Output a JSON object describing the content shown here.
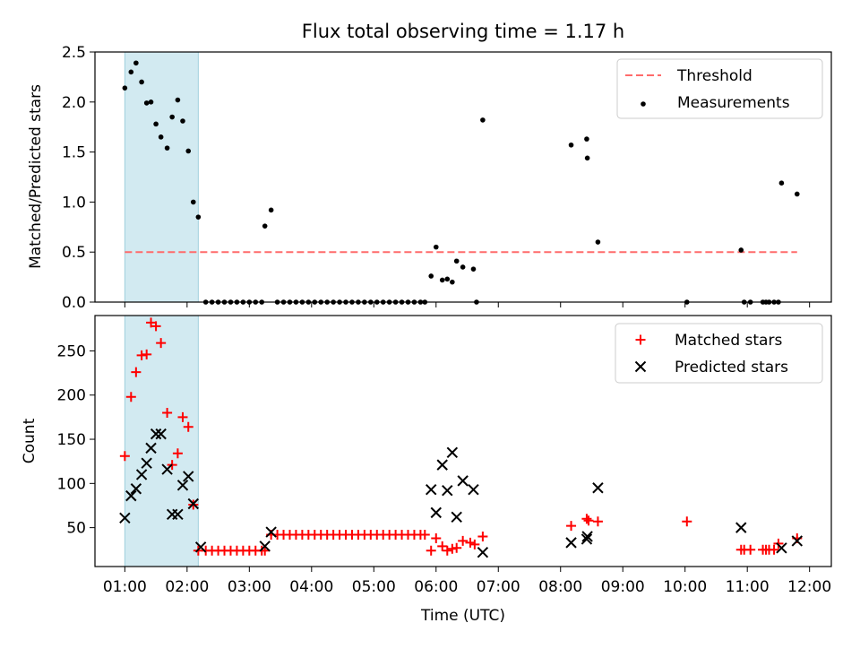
{
  "chart_data": {
    "type": "scatter",
    "title": "Flux total observing time = 1.17 h",
    "xlabel": "Time (UTC)",
    "xlim": [
      0.52,
      12.35
    ],
    "xticks": [
      "01:00",
      "02:00",
      "03:00",
      "04:00",
      "05:00",
      "06:00",
      "07:00",
      "08:00",
      "09:00",
      "10:00",
      "11:00",
      "12:00"
    ],
    "shaded_span": [
      1.0,
      2.18
    ],
    "colors": {
      "threshold": "#ff6b6b",
      "matched": "#ff0000",
      "measure": "#000000",
      "predicted": "#000000",
      "shade": "#add8e6"
    },
    "top": {
      "ylabel": "Matched/Predicted stars",
      "ylim": [
        0,
        2.5
      ],
      "yticks": [
        "0.0",
        "0.5",
        "1.0",
        "1.5",
        "2.0",
        "2.5"
      ],
      "threshold": 0.5,
      "threshold_range": [
        1.0,
        11.8
      ],
      "legend": [
        "Threshold",
        "Measurements"
      ],
      "legend_position": "top-right",
      "measurements": [
        [
          1.0,
          2.14
        ],
        [
          1.1,
          2.3
        ],
        [
          1.18,
          2.39
        ],
        [
          1.27,
          2.2
        ],
        [
          1.35,
          1.99
        ],
        [
          1.42,
          2.0
        ],
        [
          1.5,
          1.78
        ],
        [
          1.58,
          1.65
        ],
        [
          1.68,
          1.54
        ],
        [
          1.76,
          1.85
        ],
        [
          1.85,
          2.02
        ],
        [
          1.93,
          1.81
        ],
        [
          2.02,
          1.51
        ],
        [
          2.1,
          1.0
        ],
        [
          2.18,
          0.85
        ],
        [
          2.3,
          0
        ],
        [
          2.4,
          0
        ],
        [
          2.5,
          0
        ],
        [
          2.6,
          0
        ],
        [
          2.7,
          0
        ],
        [
          2.8,
          0
        ],
        [
          2.9,
          0
        ],
        [
          3.0,
          0
        ],
        [
          3.1,
          0
        ],
        [
          3.2,
          0
        ],
        [
          3.25,
          0.76
        ],
        [
          3.35,
          0.92
        ],
        [
          3.45,
          0
        ],
        [
          3.55,
          0
        ],
        [
          3.65,
          0
        ],
        [
          3.75,
          0
        ],
        [
          3.85,
          0
        ],
        [
          3.95,
          0
        ],
        [
          4.05,
          0
        ],
        [
          4.15,
          0
        ],
        [
          4.25,
          0
        ],
        [
          4.35,
          0
        ],
        [
          4.45,
          0
        ],
        [
          4.55,
          0
        ],
        [
          4.65,
          0
        ],
        [
          4.75,
          0
        ],
        [
          4.85,
          0
        ],
        [
          4.95,
          0
        ],
        [
          5.05,
          0
        ],
        [
          5.15,
          0
        ],
        [
          5.25,
          0
        ],
        [
          5.35,
          0
        ],
        [
          5.45,
          0
        ],
        [
          5.55,
          0
        ],
        [
          5.65,
          0
        ],
        [
          5.75,
          0
        ],
        [
          5.82,
          0
        ],
        [
          5.92,
          0.26
        ],
        [
          6.0,
          0.55
        ],
        [
          6.1,
          0.22
        ],
        [
          6.18,
          0.23
        ],
        [
          6.26,
          0.2
        ],
        [
          6.33,
          0.41
        ],
        [
          6.43,
          0.35
        ],
        [
          6.6,
          0.33
        ],
        [
          6.65,
          0
        ],
        [
          6.75,
          1.82
        ],
        [
          8.17,
          1.57
        ],
        [
          8.42,
          1.63
        ],
        [
          8.43,
          1.44
        ],
        [
          8.6,
          0.6
        ],
        [
          10.03,
          0
        ],
        [
          10.9,
          0.52
        ],
        [
          10.95,
          0
        ],
        [
          11.05,
          0
        ],
        [
          11.25,
          0
        ],
        [
          11.3,
          0
        ],
        [
          11.35,
          0
        ],
        [
          11.43,
          0
        ],
        [
          11.5,
          0
        ],
        [
          11.55,
          1.19
        ],
        [
          11.8,
          1.08
        ]
      ]
    },
    "bottom": {
      "ylabel": "Count",
      "ylim": [
        6,
        290
      ],
      "yticks": [
        "50",
        "100",
        "150",
        "200",
        "250"
      ],
      "legend": [
        "Matched stars",
        "Predicted stars"
      ],
      "legend_position": "top-right",
      "matched": [
        [
          1.0,
          131
        ],
        [
          1.1,
          198
        ],
        [
          1.18,
          226
        ],
        [
          1.27,
          245
        ],
        [
          1.35,
          246
        ],
        [
          1.42,
          282
        ],
        [
          1.5,
          278
        ],
        [
          1.58,
          259
        ],
        [
          1.68,
          180
        ],
        [
          1.76,
          121
        ],
        [
          1.85,
          134
        ],
        [
          1.93,
          175
        ],
        [
          2.02,
          164
        ],
        [
          2.1,
          76
        ],
        [
          2.18,
          24
        ],
        [
          2.3,
          24
        ],
        [
          2.4,
          24
        ],
        [
          2.5,
          24
        ],
        [
          2.6,
          24
        ],
        [
          2.7,
          24
        ],
        [
          2.8,
          24
        ],
        [
          2.9,
          24
        ],
        [
          3.0,
          24
        ],
        [
          3.1,
          24
        ],
        [
          3.2,
          24
        ],
        [
          3.25,
          24
        ],
        [
          3.35,
          42
        ],
        [
          3.45,
          42
        ],
        [
          3.55,
          42
        ],
        [
          3.65,
          42
        ],
        [
          3.75,
          42
        ],
        [
          3.85,
          42
        ],
        [
          3.95,
          42
        ],
        [
          4.05,
          42
        ],
        [
          4.15,
          42
        ],
        [
          4.25,
          42
        ],
        [
          4.35,
          42
        ],
        [
          4.45,
          42
        ],
        [
          4.55,
          42
        ],
        [
          4.65,
          42
        ],
        [
          4.75,
          42
        ],
        [
          4.85,
          42
        ],
        [
          4.95,
          42
        ],
        [
          5.05,
          42
        ],
        [
          5.15,
          42
        ],
        [
          5.25,
          42
        ],
        [
          5.35,
          42
        ],
        [
          5.45,
          42
        ],
        [
          5.55,
          42
        ],
        [
          5.65,
          42
        ],
        [
          5.75,
          42
        ],
        [
          5.82,
          42
        ],
        [
          5.92,
          24
        ],
        [
          6.0,
          38
        ],
        [
          6.1,
          29
        ],
        [
          6.18,
          24
        ],
        [
          6.26,
          26
        ],
        [
          6.33,
          27
        ],
        [
          6.43,
          35
        ],
        [
          6.55,
          33
        ],
        [
          6.62,
          31
        ],
        [
          6.75,
          40
        ],
        [
          8.17,
          52
        ],
        [
          8.42,
          60
        ],
        [
          8.45,
          58
        ],
        [
          8.6,
          57
        ],
        [
          10.03,
          57
        ],
        [
          10.9,
          25
        ],
        [
          10.95,
          25
        ],
        [
          11.05,
          25
        ],
        [
          11.25,
          25
        ],
        [
          11.3,
          25
        ],
        [
          11.35,
          25
        ],
        [
          11.43,
          25
        ],
        [
          11.5,
          32
        ],
        [
          11.8,
          38
        ]
      ],
      "predicted": [
        [
          1.0,
          61
        ],
        [
          1.1,
          86
        ],
        [
          1.18,
          94
        ],
        [
          1.27,
          110
        ],
        [
          1.35,
          123
        ],
        [
          1.42,
          140
        ],
        [
          1.5,
          156
        ],
        [
          1.58,
          156
        ],
        [
          1.68,
          116
        ],
        [
          1.76,
          65
        ],
        [
          1.85,
          65
        ],
        [
          1.93,
          98
        ],
        [
          2.02,
          108
        ],
        [
          2.1,
          77
        ],
        [
          2.22,
          28
        ],
        [
          3.25,
          29
        ],
        [
          3.35,
          45
        ],
        [
          5.92,
          93
        ],
        [
          6.0,
          67
        ],
        [
          6.1,
          121
        ],
        [
          6.18,
          92
        ],
        [
          6.26,
          135
        ],
        [
          6.33,
          62
        ],
        [
          6.43,
          103
        ],
        [
          6.6,
          93
        ],
        [
          6.75,
          22
        ],
        [
          8.17,
          33
        ],
        [
          8.42,
          37
        ],
        [
          8.43,
          40
        ],
        [
          8.6,
          95
        ],
        [
          10.9,
          50
        ],
        [
          11.55,
          27
        ],
        [
          11.8,
          35
        ]
      ]
    }
  }
}
